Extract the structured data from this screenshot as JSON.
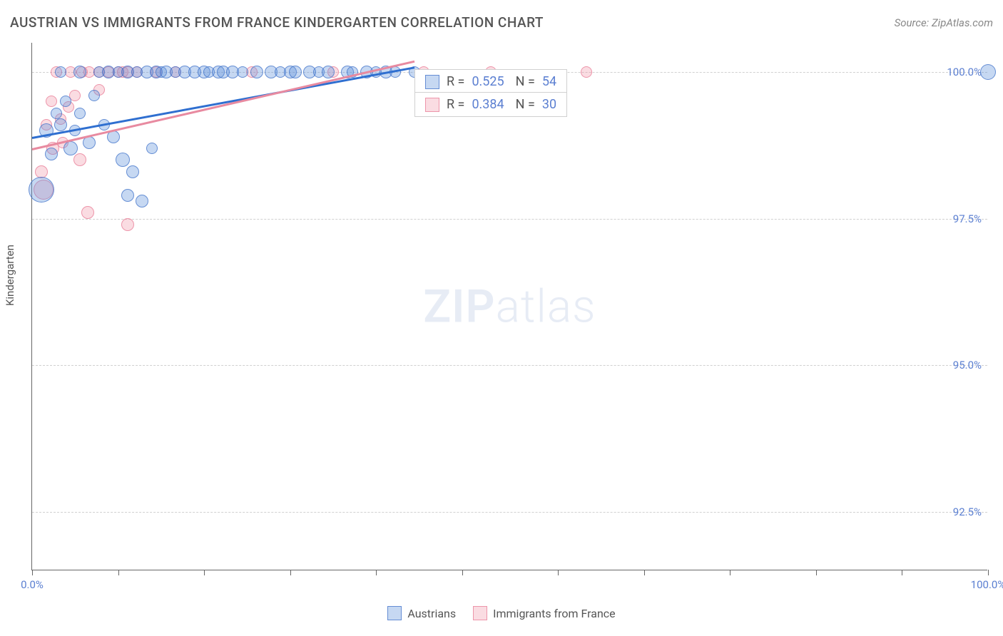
{
  "title": "AUSTRIAN VS IMMIGRANTS FROM FRANCE KINDERGARTEN CORRELATION CHART",
  "source": "Source: ZipAtlas.com",
  "ylabel": "Kindergarten",
  "watermark_zip": "ZIP",
  "watermark_atlas": "atlas",
  "chart": {
    "type": "scatter",
    "xlim": [
      0,
      100
    ],
    "ylim": [
      91.5,
      100.5
    ],
    "yticks": [
      {
        "v": 92.5,
        "label": "92.5%"
      },
      {
        "v": 95.0,
        "label": "95.0%"
      },
      {
        "v": 97.5,
        "label": "97.5%"
      },
      {
        "v": 100.0,
        "label": "100.0%"
      }
    ],
    "xticks_minor": [
      0,
      9,
      18,
      27,
      36,
      45,
      55,
      64,
      73,
      82,
      91,
      100
    ],
    "xticks_labeled": [
      {
        "v": 0,
        "label": "0.0%"
      },
      {
        "v": 100,
        "label": "100.0%"
      }
    ],
    "grid_color": "#d0d0d0",
    "background_color": "#ffffff",
    "series": [
      {
        "name": "Austrians",
        "color_key": "blue",
        "fill": "rgba(93,143,219,0.35)",
        "stroke": "rgba(60,110,200,0.7)",
        "R": "0.525",
        "N": "54",
        "trend": {
          "x1": 0,
          "y1": 98.9,
          "x2": 40,
          "y2": 100.1
        },
        "points": [
          {
            "x": 1,
            "y": 98.0,
            "r": 18
          },
          {
            "x": 1.5,
            "y": 99.0,
            "r": 10
          },
          {
            "x": 2,
            "y": 98.6,
            "r": 9
          },
          {
            "x": 2.5,
            "y": 99.3,
            "r": 8
          },
          {
            "x": 3,
            "y": 99.1,
            "r": 9
          },
          {
            "x": 3,
            "y": 100.0,
            "r": 8
          },
          {
            "x": 3.5,
            "y": 99.5,
            "r": 8
          },
          {
            "x": 4,
            "y": 98.7,
            "r": 10
          },
          {
            "x": 4.5,
            "y": 99.0,
            "r": 8
          },
          {
            "x": 5,
            "y": 99.3,
            "r": 8
          },
          {
            "x": 5,
            "y": 100.0,
            "r": 9
          },
          {
            "x": 6,
            "y": 98.8,
            "r": 9
          },
          {
            "x": 6.5,
            "y": 99.6,
            "r": 8
          },
          {
            "x": 7,
            "y": 100.0,
            "r": 8
          },
          {
            "x": 7.5,
            "y": 99.1,
            "r": 8
          },
          {
            "x": 8,
            "y": 100.0,
            "r": 9
          },
          {
            "x": 8.5,
            "y": 98.9,
            "r": 9
          },
          {
            "x": 9,
            "y": 100.0,
            "r": 8
          },
          {
            "x": 9.5,
            "y": 98.5,
            "r": 10
          },
          {
            "x": 10,
            "y": 100.0,
            "r": 9
          },
          {
            "x": 10,
            "y": 97.9,
            "r": 9
          },
          {
            "x": 10.5,
            "y": 98.3,
            "r": 9
          },
          {
            "x": 11,
            "y": 100.0,
            "r": 8
          },
          {
            "x": 11.5,
            "y": 97.8,
            "r": 9
          },
          {
            "x": 12,
            "y": 100.0,
            "r": 9
          },
          {
            "x": 12.5,
            "y": 98.7,
            "r": 8
          },
          {
            "x": 13,
            "y": 100.0,
            "r": 9
          },
          {
            "x": 13.5,
            "y": 100.0,
            "r": 8
          },
          {
            "x": 14,
            "y": 100.0,
            "r": 9
          },
          {
            "x": 15,
            "y": 100.0,
            "r": 8
          },
          {
            "x": 16,
            "y": 100.0,
            "r": 9
          },
          {
            "x": 17,
            "y": 100.0,
            "r": 9
          },
          {
            "x": 18,
            "y": 100.0,
            "r": 9
          },
          {
            "x": 18.5,
            "y": 100.0,
            "r": 8
          },
          {
            "x": 19.5,
            "y": 100.0,
            "r": 9
          },
          {
            "x": 20,
            "y": 100.0,
            "r": 9
          },
          {
            "x": 21,
            "y": 100.0,
            "r": 9
          },
          {
            "x": 22,
            "y": 100.0,
            "r": 8
          },
          {
            "x": 23.5,
            "y": 100.0,
            "r": 9
          },
          {
            "x": 25,
            "y": 100.0,
            "r": 9
          },
          {
            "x": 26,
            "y": 100.0,
            "r": 8
          },
          {
            "x": 27,
            "y": 100.0,
            "r": 9
          },
          {
            "x": 27.5,
            "y": 100.0,
            "r": 9
          },
          {
            "x": 29,
            "y": 100.0,
            "r": 9
          },
          {
            "x": 30,
            "y": 100.0,
            "r": 8
          },
          {
            "x": 31,
            "y": 100.0,
            "r": 9
          },
          {
            "x": 33,
            "y": 100.0,
            "r": 9
          },
          {
            "x": 33.5,
            "y": 100.0,
            "r": 8
          },
          {
            "x": 35,
            "y": 100.0,
            "r": 9
          },
          {
            "x": 36,
            "y": 100.0,
            "r": 8
          },
          {
            "x": 37,
            "y": 100.0,
            "r": 9
          },
          {
            "x": 38,
            "y": 100.0,
            "r": 8
          },
          {
            "x": 40,
            "y": 100.0,
            "r": 8
          },
          {
            "x": 100,
            "y": 100.0,
            "r": 11
          }
        ]
      },
      {
        "name": "Immigrants from France",
        "color_key": "pink",
        "fill": "rgba(240,140,160,0.3)",
        "stroke": "rgba(230,110,140,0.65)",
        "R": "0.384",
        "N": "30",
        "trend": {
          "x1": 0,
          "y1": 98.7,
          "x2": 40,
          "y2": 100.2
        },
        "points": [
          {
            "x": 1,
            "y": 98.3,
            "r": 9
          },
          {
            "x": 1.2,
            "y": 98.0,
            "r": 14
          },
          {
            "x": 1.5,
            "y": 99.1,
            "r": 8
          },
          {
            "x": 2,
            "y": 99.5,
            "r": 8
          },
          {
            "x": 2.2,
            "y": 98.7,
            "r": 9
          },
          {
            "x": 2.5,
            "y": 100.0,
            "r": 8
          },
          {
            "x": 3,
            "y": 99.2,
            "r": 8
          },
          {
            "x": 3.2,
            "y": 98.8,
            "r": 8
          },
          {
            "x": 3.8,
            "y": 99.4,
            "r": 8
          },
          {
            "x": 4,
            "y": 100.0,
            "r": 8
          },
          {
            "x": 4.5,
            "y": 99.6,
            "r": 8
          },
          {
            "x": 5,
            "y": 98.5,
            "r": 9
          },
          {
            "x": 5.2,
            "y": 100.0,
            "r": 8
          },
          {
            "x": 5.8,
            "y": 97.6,
            "r": 9
          },
          {
            "x": 6,
            "y": 100.0,
            "r": 8
          },
          {
            "x": 7,
            "y": 100.0,
            "r": 8
          },
          {
            "x": 7,
            "y": 99.7,
            "r": 8
          },
          {
            "x": 8,
            "y": 100.0,
            "r": 8
          },
          {
            "x": 9,
            "y": 100.0,
            "r": 8
          },
          {
            "x": 9.5,
            "y": 100.0,
            "r": 8
          },
          {
            "x": 10,
            "y": 100.0,
            "r": 8
          },
          {
            "x": 10,
            "y": 97.4,
            "r": 9
          },
          {
            "x": 11,
            "y": 100.0,
            "r": 8
          },
          {
            "x": 13,
            "y": 100.0,
            "r": 8
          },
          {
            "x": 15,
            "y": 100.0,
            "r": 8
          },
          {
            "x": 23,
            "y": 100.0,
            "r": 8
          },
          {
            "x": 31.5,
            "y": 100.0,
            "r": 8
          },
          {
            "x": 41,
            "y": 100.0,
            "r": 8
          },
          {
            "x": 48,
            "y": 100.0,
            "r": 8
          },
          {
            "x": 58,
            "y": 100.0,
            "r": 8
          }
        ]
      }
    ]
  },
  "stats_box": {
    "rows": [
      {
        "color": "blue",
        "R_label": "R =",
        "R": "0.525",
        "N_label": "N =",
        "N": "54"
      },
      {
        "color": "pink",
        "R_label": "R =",
        "R": "0.384",
        "N_label": "N =",
        "N": "30"
      }
    ]
  },
  "legend": [
    {
      "color": "blue",
      "label": "Austrians"
    },
    {
      "color": "pink",
      "label": "Immigrants from France"
    }
  ]
}
